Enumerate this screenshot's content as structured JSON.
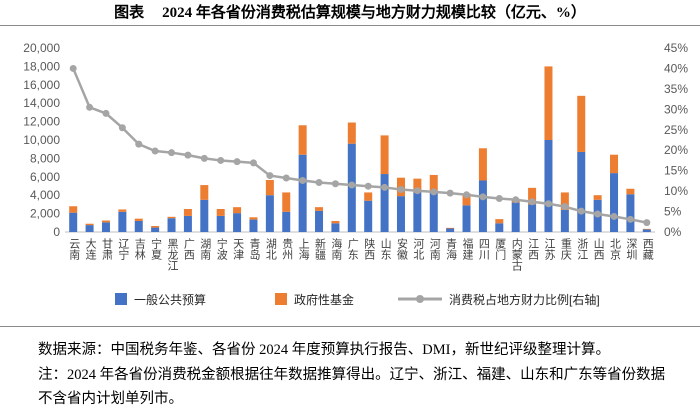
{
  "title": {
    "label": "图表",
    "text": "2024 年各省份消费税估算规模与地方财力规模比较（亿元、%）"
  },
  "chart_data": {
    "type": "bar",
    "stacked": true,
    "categories": [
      "云南",
      "大连",
      "甘肃",
      "辽宁",
      "吉林",
      "宁夏",
      "黑龙江",
      "广西",
      "湖南",
      "宁波",
      "天津",
      "青岛",
      "湖北",
      "贵州",
      "上海",
      "新疆",
      "海南",
      "广东",
      "陕西",
      "山东",
      "安徽",
      "河北",
      "河南",
      "青海",
      "福建",
      "四川",
      "厦门",
      "内蒙古",
      "江西",
      "江苏",
      "重庆",
      "浙江",
      "山西",
      "北京",
      "深圳",
      "西藏"
    ],
    "series": [
      {
        "name": "一般公共预算",
        "type": "bar",
        "axis": "left",
        "color": "#4472C4",
        "values": [
          2100,
          750,
          1050,
          2200,
          1200,
          480,
          1500,
          1750,
          3500,
          1750,
          2050,
          1350,
          4000,
          2200,
          8400,
          2300,
          950,
          9600,
          3400,
          6300,
          3900,
          4300,
          4500,
          380,
          2900,
          5600,
          950,
          3200,
          3000,
          10000,
          2400,
          8700,
          3500,
          6400,
          4100,
          280
        ]
      },
      {
        "name": "政府性基金",
        "type": "bar",
        "axis": "left",
        "color": "#ED7D31",
        "values": [
          700,
          150,
          200,
          250,
          250,
          170,
          150,
          750,
          1600,
          750,
          650,
          250,
          1650,
          2100,
          3200,
          400,
          250,
          2300,
          900,
          4200,
          2000,
          1500,
          1700,
          70,
          1300,
          3500,
          450,
          400,
          1800,
          8000,
          1900,
          6100,
          500,
          2000,
          600,
          60
        ]
      },
      {
        "name": "消费税占地方财力比例[右轴]",
        "type": "line",
        "axis": "right",
        "color": "#A5A5A5",
        "values": [
          40.0,
          30.5,
          29.0,
          25.5,
          21.5,
          19.8,
          19.4,
          18.8,
          18.0,
          17.5,
          17.2,
          16.9,
          13.8,
          13.2,
          12.6,
          12.1,
          11.8,
          11.5,
          11.2,
          10.9,
          10.4,
          10.1,
          9.8,
          9.5,
          9.1,
          8.6,
          8.2,
          7.9,
          7.4,
          6.9,
          6.2,
          5.1,
          4.4,
          3.8,
          3.1,
          2.3
        ]
      }
    ],
    "y_left": {
      "min": 0,
      "max": 20000,
      "ticks": [
        {
          "value": 0,
          "label": "0"
        },
        {
          "value": 2000,
          "label": "2,000"
        },
        {
          "value": 4000,
          "label": "4,000"
        },
        {
          "value": 6000,
          "label": "6,000"
        },
        {
          "value": 8000,
          "label": "8,000"
        },
        {
          "value": 10000,
          "label": "10,000"
        },
        {
          "value": 12000,
          "label": "12,000"
        },
        {
          "value": 14000,
          "label": "14,000"
        },
        {
          "value": 16000,
          "label": "16,000"
        },
        {
          "value": 18000,
          "label": "18,000"
        },
        {
          "value": 20000,
          "label": "20,000"
        }
      ]
    },
    "y_right": {
      "min": 0,
      "max": 45,
      "ticks": [
        {
          "value": 0,
          "label": "0%"
        },
        {
          "value": 5,
          "label": "5%"
        },
        {
          "value": 10,
          "label": "10%"
        },
        {
          "value": 15,
          "label": "15%"
        },
        {
          "value": 20,
          "label": "20%"
        },
        {
          "value": 25,
          "label": "25%"
        },
        {
          "value": 30,
          "label": "30%"
        },
        {
          "value": 35,
          "label": "35%"
        },
        {
          "value": 40,
          "label": "40%"
        },
        {
          "value": 45,
          "label": "45%"
        }
      ]
    },
    "grid": false,
    "legend": "bottom"
  },
  "source": "数据来源：中国税务年鉴、各省份 2024 年度预算执行报告、DMI，新世纪评级整理计算。",
  "note_lines": [
    "注：2024 年各省份消费税金额根据往年数据推算得出。辽宁、浙江、福建、山东和广东等省份数据",
    "不含省内计划单列市。"
  ]
}
